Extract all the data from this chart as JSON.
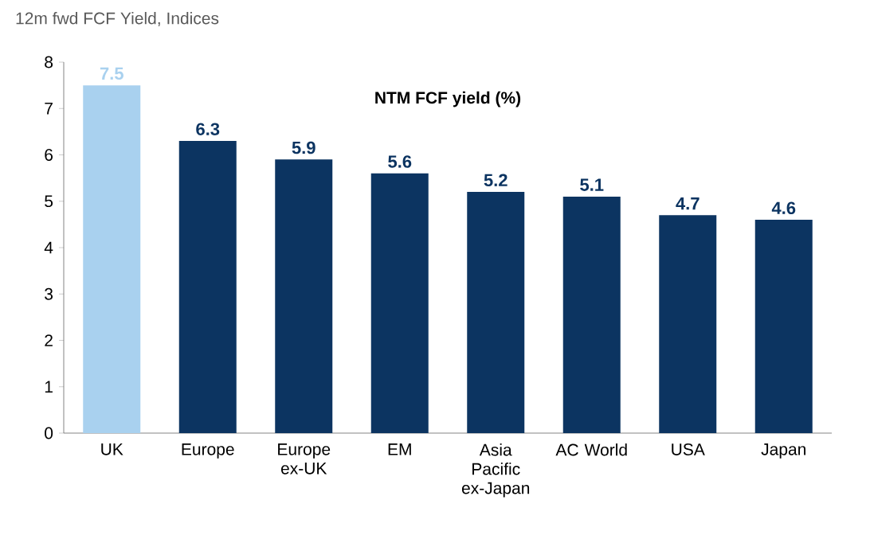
{
  "chart_data": {
    "type": "bar",
    "title": "12m fwd FCF Yield, Indices",
    "subtitle": "NTM FCF yield (%)",
    "categories": [
      "UK",
      "Europe",
      "Europe ex-UK",
      "EM",
      "Asia Pacific ex-Japan",
      "AC World",
      "USA",
      "Japan"
    ],
    "values": [
      7.5,
      6.3,
      5.9,
      5.6,
      5.2,
      5.1,
      4.7,
      4.6
    ],
    "colors": [
      "#a9d1ef",
      "#0c3461",
      "#0c3461",
      "#0c3461",
      "#0c3461",
      "#0c3461",
      "#0c3461",
      "#0c3461"
    ],
    "ylim": [
      0,
      8
    ],
    "yticks": [
      0,
      1,
      2,
      3,
      4,
      5,
      6,
      7,
      8
    ],
    "data_labels": true
  }
}
